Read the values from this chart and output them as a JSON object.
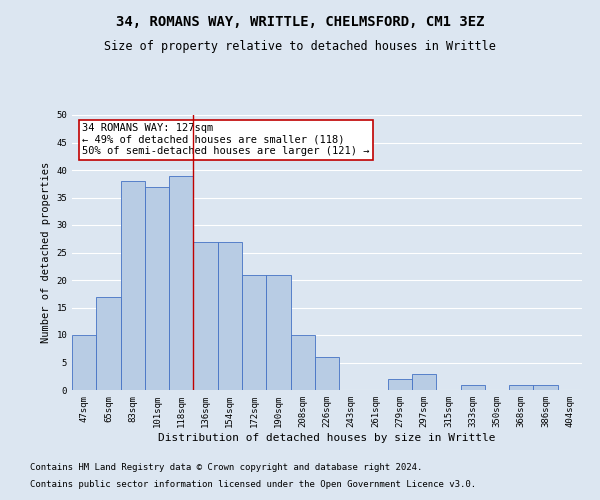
{
  "title": "34, ROMANS WAY, WRITTLE, CHELMSFORD, CM1 3EZ",
  "subtitle": "Size of property relative to detached houses in Writtle",
  "xlabel": "Distribution of detached houses by size in Writtle",
  "ylabel": "Number of detached properties",
  "categories": [
    "47sqm",
    "65sqm",
    "83sqm",
    "101sqm",
    "118sqm",
    "136sqm",
    "154sqm",
    "172sqm",
    "190sqm",
    "208sqm",
    "226sqm",
    "243sqm",
    "261sqm",
    "279sqm",
    "297sqm",
    "315sqm",
    "333sqm",
    "350sqm",
    "368sqm",
    "386sqm",
    "404sqm"
  ],
  "values": [
    10,
    17,
    38,
    37,
    39,
    27,
    27,
    21,
    21,
    10,
    6,
    0,
    0,
    2,
    3,
    0,
    1,
    0,
    1,
    1,
    0
  ],
  "bar_color": "#b8cce4",
  "bar_edge_color": "#4472c4",
  "background_color": "#dce6f1",
  "plot_bg_color": "#dce6f1",
  "grid_color": "#ffffff",
  "vline_x_index": 4.5,
  "vline_color": "#c00000",
  "annotation_text": "34 ROMANS WAY: 127sqm\n← 49% of detached houses are smaller (118)\n50% of semi-detached houses are larger (121) →",
  "annotation_box_color": "#ffffff",
  "annotation_box_edge_color": "#c00000",
  "ylim": [
    0,
    50
  ],
  "yticks": [
    0,
    5,
    10,
    15,
    20,
    25,
    30,
    35,
    40,
    45,
    50
  ],
  "footnote1": "Contains HM Land Registry data © Crown copyright and database right 2024.",
  "footnote2": "Contains public sector information licensed under the Open Government Licence v3.0.",
  "title_fontsize": 10,
  "subtitle_fontsize": 8.5,
  "xlabel_fontsize": 8,
  "ylabel_fontsize": 7.5,
  "tick_fontsize": 6.5,
  "annotation_fontsize": 7.5,
  "footnote_fontsize": 6.5
}
